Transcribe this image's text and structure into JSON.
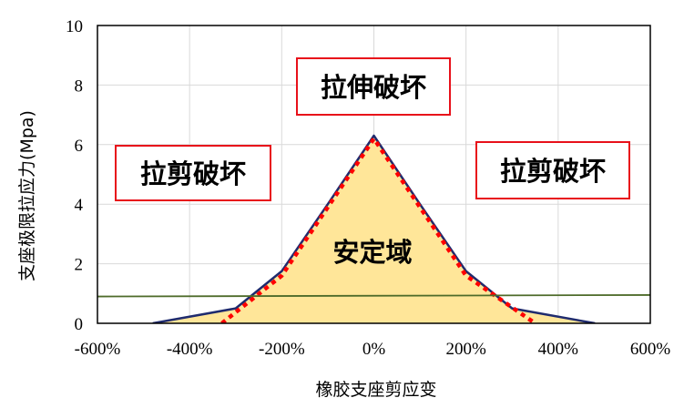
{
  "chart_data": {
    "type": "line",
    "title": "",
    "xlabel": "橡胶支座剪应变",
    "ylabel": "支座极限拉应力(Mpa)",
    "xlim": [
      -600,
      600
    ],
    "ylim": [
      0,
      10
    ],
    "x_ticks": [
      "-600%",
      "-400%",
      "-200%",
      "0%",
      "200%",
      "400%",
      "600%"
    ],
    "y_ticks": [
      "0",
      "2",
      "4",
      "6",
      "8",
      "10"
    ],
    "grid": true,
    "legend": "none",
    "series": [
      {
        "line_style": "solid",
        "color": "#1f2b6e",
        "fill": "#ffe699",
        "x": [
          -480,
          -300,
          -200,
          -100,
          0,
          100,
          200,
          300,
          480
        ],
        "y": [
          0,
          0.5,
          1.75,
          4.0,
          6.3,
          4.0,
          1.75,
          0.5,
          0
        ]
      },
      {
        "line_style": "dotted",
        "color": "#ff0000",
        "x": [
          -330,
          -200,
          -100,
          0,
          100,
          200,
          350
        ],
        "y": [
          0,
          1.6,
          3.9,
          6.2,
          3.9,
          1.6,
          0
        ]
      },
      {
        "line_style": "solid",
        "color": "#4e6b2a",
        "x": [
          -600,
          600
        ],
        "y": [
          0.9,
          0.95
        ]
      }
    ],
    "annotations": [
      {
        "text": "拉伸破坏",
        "boxed": true
      },
      {
        "text": "拉剪破坏",
        "boxed": true
      },
      {
        "text": "拉剪破坏",
        "boxed": true
      },
      {
        "text": "安定域",
        "boxed": false
      }
    ]
  }
}
